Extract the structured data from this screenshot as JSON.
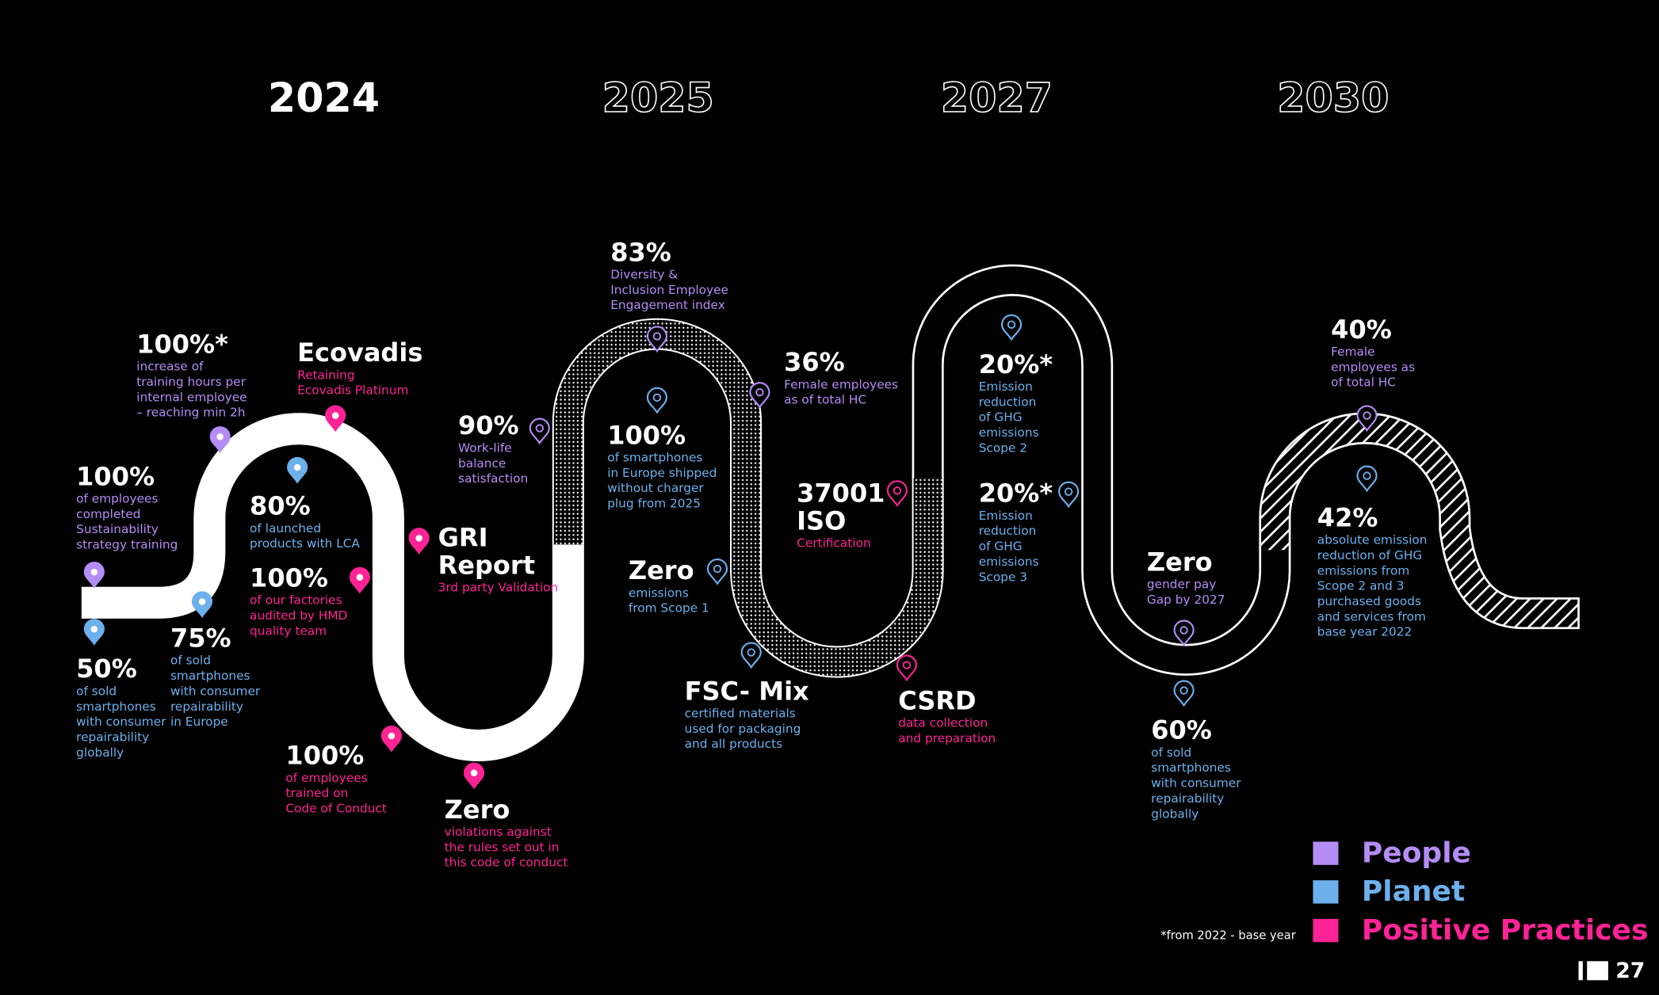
{
  "years": [
    "2024",
    "2025",
    "2027",
    "2030"
  ],
  "categories": [
    {
      "name": "People",
      "color": "#b48cf5"
    },
    {
      "name": "Planet",
      "color": "#6cb0ec"
    },
    {
      "name": "Positive Practices",
      "color": "#ff2396"
    }
  ],
  "milestones": [
    {
      "headline": "100%",
      "lines": [
        "of employees",
        "completed",
        "Sustainability",
        "strategy training"
      ],
      "category": 0
    },
    {
      "headline": "50%",
      "lines": [
        "of sold",
        "smartphones",
        "with consumer",
        "repairability",
        "globally"
      ],
      "category": 1
    },
    {
      "headline": "100%*",
      "lines": [
        "increase of",
        "training hours per",
        "internal employee",
        "– reaching min 2h"
      ],
      "category": 0
    },
    {
      "headline": "75%",
      "lines": [
        "of sold",
        "smartphones",
        "with consumer",
        "repairability",
        "in Europe"
      ],
      "category": 1
    },
    {
      "headline": "80%",
      "lines": [
        "of launched",
        "products with LCA"
      ],
      "category": 1
    },
    {
      "headline": "Ecovadis",
      "lines": [
        "Retaining",
        "Ecovadis Platinum"
      ],
      "category": 2
    },
    {
      "headline": "100%",
      "lines": [
        "of our factories",
        "audited by HMD",
        "quality team"
      ],
      "category": 2
    },
    {
      "headline": "100%",
      "lines": [
        "of employees",
        "trained on",
        "Code of Conduct"
      ],
      "category": 2
    },
    {
      "headline": [
        "GRI",
        "Report"
      ],
      "lines": [
        "3rd party Validation"
      ],
      "category": 2
    },
    {
      "headline": "Zero",
      "lines": [
        "violations against",
        "the rules set out in",
        "this code of conduct"
      ],
      "category": 2
    },
    {
      "headline": "90%",
      "lines": [
        "Work-life",
        "balance",
        "satisfaction"
      ],
      "category": 0
    },
    {
      "headline": "83%",
      "lines": [
        "Diversity &",
        "Inclusion Employee",
        "Engagement index"
      ],
      "category": 0
    },
    {
      "headline": "100%",
      "lines": [
        "of smartphones",
        "in Europe shipped",
        "without charger",
        "plug from 2025"
      ],
      "category": 1
    },
    {
      "headline": "36%",
      "lines": [
        "Female employees",
        "as of total HC"
      ],
      "category": 0
    },
    {
      "headline": "Zero",
      "lines": [
        "emissions",
        "from Scope 1"
      ],
      "category": 1
    },
    {
      "headline": "FSC- Mix",
      "lines": [
        "certified materials",
        "used for packaging",
        "and all products"
      ],
      "category": 1
    },
    {
      "headline": [
        "37001",
        "ISO"
      ],
      "lines": [
        "Certification"
      ],
      "category": 2
    },
    {
      "headline": "CSRD",
      "lines": [
        "data collection",
        "and preparation"
      ],
      "category": 2
    },
    {
      "headline": "20%*",
      "lines": [
        "Emission",
        "reduction",
        "of GHG",
        "emissions",
        "Scope 2"
      ],
      "category": 1
    },
    {
      "headline": "20%*",
      "lines": [
        "Emission",
        "reduction",
        "of GHG",
        "emissions",
        "Scope 3"
      ],
      "category": 1
    },
    {
      "headline": "Zero",
      "lines": [
        "gender pay",
        "Gap by 2027"
      ],
      "category": 0
    },
    {
      "headline": "60%",
      "lines": [
        "of sold",
        "smartphones",
        "with consumer",
        "repairability",
        "globally"
      ],
      "category": 1
    },
    {
      "headline": "40%",
      "lines": [
        "Female",
        "employees as",
        "of total HC"
      ],
      "category": 0
    },
    {
      "headline": "42%",
      "lines": [
        "absolute emission",
        "reduction of GHG",
        "emissions from",
        "Scope 2 and 3",
        "purchased goods",
        "and services from",
        "base year 2022"
      ],
      "category": 1
    }
  ],
  "footnote": "*from 2022 - base year",
  "page_number": "27"
}
